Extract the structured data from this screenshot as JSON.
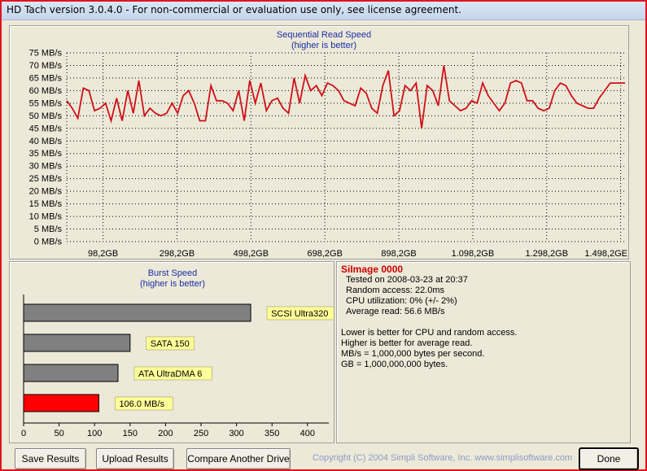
{
  "window": {
    "title": "HD Tach version 3.0.4.0  - For non-commercial or evaluation use only, see license agreement."
  },
  "seq_chart": {
    "title": "Sequential Read Speed",
    "subtitle": "(higher is better)",
    "y_ticks": [
      "75 MB/s",
      "70 MB/s",
      "65 MB/s",
      "60 MB/s",
      "55 MB/s",
      "50 MB/s",
      "45 MB/s",
      "40 MB/s",
      "35 MB/s",
      "30 MB/s",
      "25 MB/s",
      "20 MB/s",
      "15 MB/s",
      "10 MB/s",
      "5 MB/s",
      "0 MB/s"
    ],
    "x_ticks": [
      "98,2GB",
      "298,2GB",
      "498,2GB",
      "698,2GB",
      "898,2GB",
      "1.098,2GB",
      "1.298,2GB",
      "1.498,2GE"
    ],
    "line_color": "#d01018"
  },
  "burst_chart": {
    "title": "Burst Speed",
    "subtitle": "(higher is better)",
    "x_ticks": [
      "0",
      "50",
      "100",
      "150",
      "200",
      "250",
      "300",
      "350",
      "400"
    ],
    "label_color": "#ffff99",
    "current_bar_color": "#ff0000",
    "reference_bar_color": "#808080"
  },
  "info": {
    "drive_name": "SiImage 0000",
    "tested_on": "Tested on 2008-03-23 at 20:37",
    "random_access": "Random access: 22.0ms",
    "cpu_utilization": "CPU utilization: 0% (+/- 2%)",
    "average_read": "Average read: 56.6 MB/s",
    "notes": [
      "Lower is better for CPU and random access.",
      "Higher is better for average read.",
      "MB/s = 1,000,000 bytes per second.",
      "GB = 1,000,000,000 bytes."
    ]
  },
  "buttons": {
    "save": "Save Results",
    "upload": "Upload Results",
    "compare": "Compare Another Drive",
    "done": "Done"
  },
  "footer": {
    "copyright": "Copyright (C) 2004 Simpli Software, Inc. www.simplisoftware.com"
  },
  "chart_data": [
    {
      "type": "line",
      "title": "Sequential Read Speed",
      "subtitle": "(higher is better)",
      "xlabel": "",
      "ylabel": "",
      "ylim": [
        0,
        75
      ],
      "xlim": [
        0,
        1510
      ],
      "y_unit": "MB/s",
      "x_unit": "GB",
      "grid": true,
      "series": [
        {
          "x": [
            0,
            15,
            30,
            45,
            60,
            75,
            90,
            105,
            120,
            135,
            150,
            165,
            180,
            195,
            210,
            225,
            240,
            255,
            270,
            285,
            300,
            315,
            330,
            345,
            360,
            375,
            390,
            405,
            420,
            435,
            450,
            465,
            480,
            495,
            510,
            525,
            540,
            555,
            570,
            585,
            600,
            615,
            630,
            645,
            660,
            675,
            690,
            705,
            720,
            735,
            750,
            765,
            780,
            795,
            810,
            825,
            840,
            855,
            870,
            885,
            900,
            915,
            930,
            945,
            960,
            975,
            990,
            1005,
            1020,
            1035,
            1050,
            1065,
            1080,
            1095,
            1110,
            1125,
            1140,
            1155,
            1170,
            1185,
            1200,
            1215,
            1230,
            1245,
            1260,
            1275,
            1290,
            1305,
            1320,
            1335,
            1350,
            1365,
            1380,
            1395,
            1410,
            1425,
            1440,
            1455,
            1470,
            1485,
            1500,
            1510
          ],
          "values": [
            56,
            53,
            49,
            61,
            60,
            52,
            53,
            55,
            48,
            57,
            48,
            60,
            51,
            64,
            50,
            53,
            51,
            50,
            51,
            55,
            51,
            58,
            60,
            55,
            48,
            48,
            62,
            56,
            56,
            55,
            52,
            60,
            48,
            64,
            55,
            63,
            52,
            56,
            57,
            53,
            51,
            65,
            55,
            66,
            60,
            62,
            58,
            63,
            62,
            60,
            56,
            55,
            54,
            61,
            59,
            53,
            51,
            62,
            68,
            50,
            52,
            62,
            60,
            63,
            45,
            62,
            60,
            54,
            70,
            56,
            54,
            52,
            53,
            56,
            55,
            63,
            58,
            55,
            52,
            55,
            63,
            64,
            63,
            56,
            56,
            53,
            52,
            53,
            60,
            63,
            62,
            58,
            55,
            54,
            53,
            53,
            57,
            60,
            63,
            63,
            63,
            63
          ]
        }
      ]
    },
    {
      "type": "bar",
      "orientation": "horizontal",
      "title": "Burst Speed",
      "subtitle": "(higher is better)",
      "xlim": [
        0,
        430
      ],
      "categories": [
        "SCSI Ultra320",
        "SATA 150",
        "ATA UltraDMA 6",
        "106.0 MB/s"
      ],
      "values": [
        320,
        150,
        133,
        106.0
      ]
    }
  ]
}
